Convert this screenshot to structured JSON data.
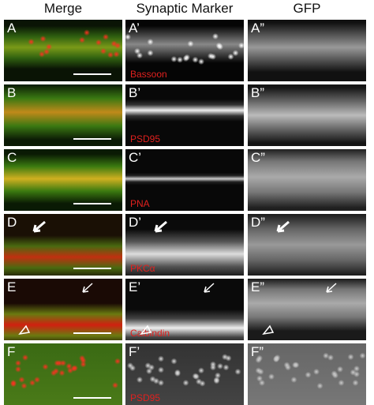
{
  "header": {
    "columns": [
      "Merge",
      "Synaptic Marker",
      "GFP"
    ]
  },
  "rows": [
    {
      "labels": [
        "A",
        "A’",
        "A”"
      ],
      "marker": "Bassoon"
    },
    {
      "labels": [
        "B",
        "B’",
        "B”"
      ],
      "marker": "PSD95"
    },
    {
      "labels": [
        "C",
        "C’",
        "C”"
      ],
      "marker": "PNA"
    },
    {
      "labels": [
        "D",
        "D’",
        "D”"
      ],
      "marker": "PKCα"
    },
    {
      "labels": [
        "E",
        "E’",
        "E”"
      ],
      "marker": "Calbindin"
    },
    {
      "labels": [
        "F",
        "F’",
        "F”"
      ],
      "marker": "PSD95"
    }
  ]
}
